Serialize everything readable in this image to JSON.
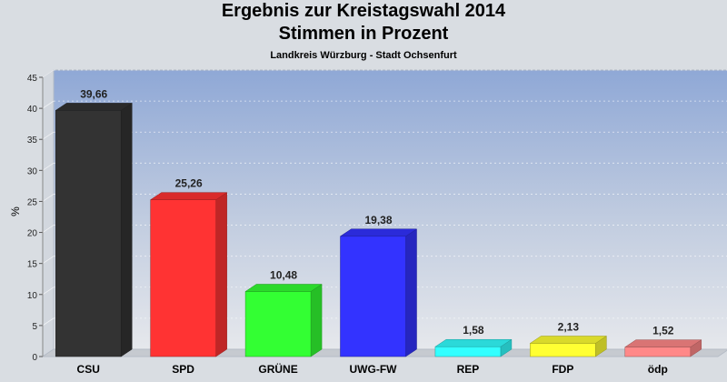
{
  "chart_data": {
    "type": "bar",
    "title": [
      "Ergebnis zur Kreistagswahl 2014",
      "Stimmen in Prozent"
    ],
    "subtitle": "Landkreis Würzburg - Stadt Ochsenfurt",
    "ylabel": "%",
    "xlabel": "",
    "ylim": [
      0,
      45
    ],
    "yticks": [
      0,
      5,
      10,
      15,
      20,
      25,
      30,
      35,
      40,
      45
    ],
    "grid": true,
    "categories": [
      "CSU",
      "SPD",
      "GRÜNE",
      "UWG-FW",
      "REP",
      "FDP",
      "ödp"
    ],
    "values": [
      39.66,
      25.26,
      10.48,
      19.38,
      1.58,
      2.13,
      1.52
    ],
    "value_labels": [
      "39,66",
      "25,26",
      "10,48",
      "19,38",
      "1,58",
      "2,13",
      "1,52"
    ],
    "colors": [
      "#333333",
      "#ff3333",
      "#33ff33",
      "#3333ff",
      "#33ffff",
      "#ffff33",
      "#ff8888"
    ]
  }
}
